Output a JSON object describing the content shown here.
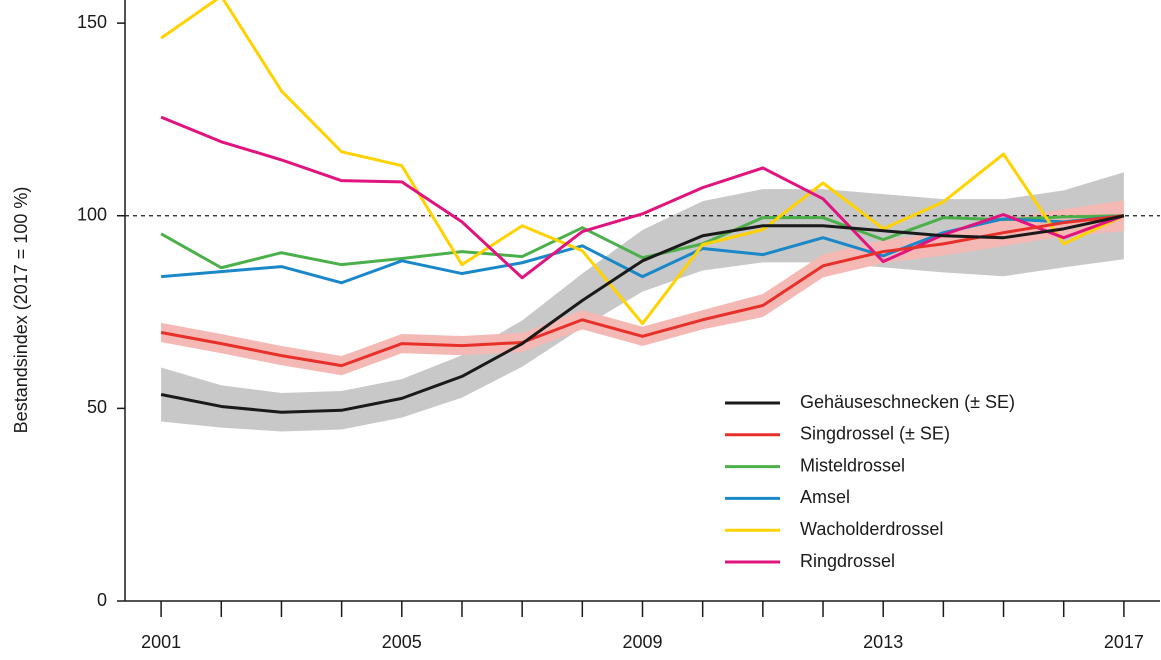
{
  "chart_data": {
    "type": "line",
    "y_label": "Bestandsindex (2017 = 100 %)",
    "x": [
      2001,
      2002,
      2003,
      2004,
      2005,
      2006,
      2007,
      2008,
      2009,
      2010,
      2011,
      2012,
      2013,
      2014,
      2015,
      2016,
      2017
    ],
    "xlim": [
      2000.4,
      2017.6
    ],
    "xticks": [
      2001,
      2005,
      2009,
      2013,
      2017
    ],
    "xminor": [
      2002,
      2003,
      2004,
      2006,
      2007,
      2008,
      2010,
      2011,
      2012,
      2014,
      2015,
      2016
    ],
    "ylim": [
      0,
      156
    ],
    "yticks": [
      0,
      50,
      100,
      150
    ],
    "hline": 100,
    "series": [
      {
        "name": "Gehäuseschnecken (± SE)",
        "color": "#1a1a1a",
        "band_color": "#c8c8c8",
        "values": [
          53.6,
          50.5,
          49,
          49.5,
          52.6,
          58.3,
          66.8,
          78,
          88.3,
          94.8,
          97.4,
          97.4,
          96.1,
          94.8,
          94.3,
          96.6,
          100
        ],
        "errors": [
          7,
          5.5,
          5,
          5,
          5,
          5.5,
          6,
          7,
          8,
          9,
          9.5,
          9.5,
          9.5,
          9.5,
          10,
          10,
          11.3
        ]
      },
      {
        "name": "Singdrossel (± SE)",
        "color": "#e8302a",
        "band_color": "#f5b9b5",
        "values": [
          69.7,
          66.8,
          63.7,
          61.1,
          66.8,
          66.3,
          67.1,
          73,
          68.7,
          73,
          76.7,
          87,
          90.7,
          92.7,
          95.6,
          98.2,
          100
        ],
        "errors": [
          2.5,
          2.5,
          2.5,
          2.5,
          2.5,
          2.5,
          2.5,
          2.5,
          2.5,
          2.5,
          3,
          3,
          3,
          3,
          3.5,
          3.5,
          4
        ]
      },
      {
        "name": "Misteldrossel",
        "color": "#4cb04a",
        "values": [
          95.3,
          86.5,
          90.4,
          87.3,
          88.9,
          90.7,
          89.4,
          96.9,
          89.1,
          92.7,
          99.5,
          99.5,
          93.8,
          99.5,
          99,
          99.7,
          100
        ]
      },
      {
        "name": "Amsel",
        "color": "#1a87c8",
        "values": [
          84.2,
          85.5,
          86.8,
          82.6,
          88.3,
          85,
          87.8,
          92.2,
          84.2,
          91.5,
          89.9,
          94.3,
          89.6,
          95.6,
          99.2,
          98.4,
          100
        ]
      },
      {
        "name": "Wacholderdrossel",
        "color": "#ffd200",
        "values": [
          146.1,
          157,
          132.4,
          116.6,
          113,
          87.3,
          97.4,
          90.9,
          72,
          92.5,
          96.4,
          108.5,
          96.6,
          103.6,
          116,
          92.7,
          100
        ]
      },
      {
        "name": "Ringdrossel",
        "color": "#e0137f",
        "values": [
          125.6,
          119.2,
          114.5,
          109.1,
          108.8,
          98.4,
          83.9,
          95.9,
          100.5,
          107.3,
          112.4,
          104.4,
          88.1,
          95.1,
          100.3,
          94.3,
          100
        ]
      }
    ]
  }
}
